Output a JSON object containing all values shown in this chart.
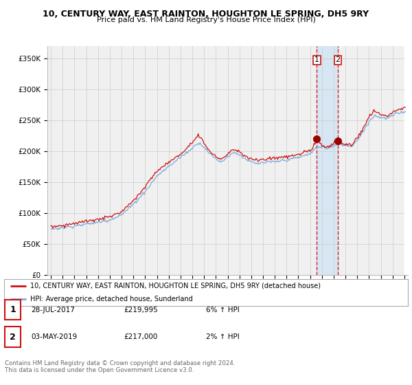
{
  "title": "10, CENTURY WAY, EAST RAINTON, HOUGHTON LE SPRING, DH5 9RY",
  "subtitle": "Price paid vs. HM Land Registry's House Price Index (HPI)",
  "ylabel_ticks": [
    "£0",
    "£50K",
    "£100K",
    "£150K",
    "£200K",
    "£250K",
    "£300K",
    "£350K"
  ],
  "ytick_values": [
    0,
    50000,
    100000,
    150000,
    200000,
    250000,
    300000,
    350000
  ],
  "ylim": [
    0,
    370000
  ],
  "xlim_start": 1994.7,
  "xlim_end": 2025.3,
  "sale1_x": 2017.57,
  "sale1_y": 219995,
  "sale2_x": 2019.34,
  "sale2_y": 217000,
  "legend_line1": "10, CENTURY WAY, EAST RAINTON, HOUGHTON LE SPRING, DH5 9RY (detached house)",
  "legend_line2": "HPI: Average price, detached house, Sunderland",
  "table_row1": [
    "1",
    "28-JUL-2017",
    "£219,995",
    "6% ↑ HPI"
  ],
  "table_row2": [
    "2",
    "03-MAY-2019",
    "£217,000",
    "2% ↑ HPI"
  ],
  "footer": "Contains HM Land Registry data © Crown copyright and database right 2024.\nThis data is licensed under the Open Government Licence v3.0.",
  "hpi_color": "#7aaadd",
  "price_color": "#cc1111",
  "sale_marker_color": "#990000",
  "vline_color": "#cc1111",
  "shade_color": "#d0e4f5",
  "background_chart": "#f0f0f0",
  "grid_color": "#cccccc",
  "hatch_color": "#cccccc"
}
